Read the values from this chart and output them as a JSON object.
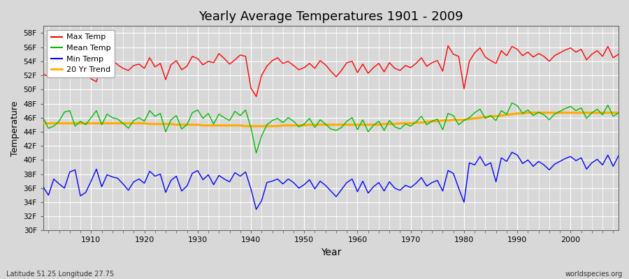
{
  "title": "Yearly Average Temperatures 1901 - 2009",
  "xlabel": "Year",
  "ylabel": "Temperature",
  "footnote_left": "Latitude 51.25 Longitude 27.75",
  "footnote_right": "worldspecies.org",
  "ylim": [
    30,
    59
  ],
  "yticks": [
    30,
    32,
    34,
    36,
    38,
    40,
    42,
    44,
    46,
    48,
    50,
    52,
    54,
    56,
    58
  ],
  "ytick_labels": [
    "30F",
    "32F",
    "34F",
    "36F",
    "38F",
    "40F",
    "42F",
    "44F",
    "46F",
    "48F",
    "50F",
    "52F",
    "54F",
    "56F",
    "58F"
  ],
  "xlim": [
    1901,
    2009
  ],
  "xticks": [
    1910,
    1920,
    1930,
    1940,
    1950,
    1960,
    1970,
    1980,
    1990,
    2000
  ],
  "bg_color": "#d8d8d8",
  "plot_bg_color": "#d8d8d8",
  "grid_color": "#ffffff",
  "max_color": "#ff0000",
  "mean_color": "#00bb00",
  "min_color": "#0000ff",
  "trend_color": "#ffaa00",
  "legend_labels": [
    "Max Temp",
    "Mean Temp",
    "Min Temp",
    "20 Yr Trend"
  ],
  "years": [
    1901,
    1902,
    1903,
    1904,
    1905,
    1906,
    1907,
    1908,
    1909,
    1910,
    1911,
    1912,
    1913,
    1914,
    1915,
    1916,
    1917,
    1918,
    1919,
    1920,
    1921,
    1922,
    1923,
    1924,
    1925,
    1926,
    1927,
    1928,
    1929,
    1930,
    1931,
    1932,
    1933,
    1934,
    1935,
    1936,
    1937,
    1938,
    1939,
    1940,
    1941,
    1942,
    1943,
    1944,
    1945,
    1946,
    1947,
    1948,
    1949,
    1950,
    1951,
    1952,
    1953,
    1954,
    1955,
    1956,
    1957,
    1958,
    1959,
    1960,
    1961,
    1962,
    1963,
    1964,
    1965,
    1966,
    1967,
    1968,
    1969,
    1970,
    1971,
    1972,
    1973,
    1974,
    1975,
    1976,
    1977,
    1978,
    1979,
    1980,
    1981,
    1982,
    1983,
    1984,
    1985,
    1986,
    1987,
    1988,
    1989,
    1990,
    1991,
    1992,
    1993,
    1994,
    1995,
    1996,
    1997,
    1998,
    1999,
    2000,
    2001,
    2002,
    2003,
    2004,
    2005,
    2006,
    2007,
    2008,
    2009
  ],
  "max_temps": [
    52.2,
    51.8,
    53.1,
    52.4,
    53.5,
    54.2,
    53.8,
    52.9,
    52.6,
    51.5,
    51.1,
    53.8,
    54.4,
    54.2,
    53.5,
    53.0,
    52.7,
    53.4,
    53.6,
    53.0,
    54.5,
    53.2,
    53.7,
    51.4,
    53.5,
    54.1,
    52.8,
    53.3,
    54.7,
    54.4,
    53.5,
    54.0,
    53.8,
    55.1,
    54.4,
    53.6,
    54.2,
    54.9,
    54.7,
    50.2,
    49.0,
    52.0,
    53.3,
    54.1,
    54.5,
    53.7,
    54.0,
    53.4,
    52.8,
    53.1,
    53.7,
    53.0,
    54.1,
    53.5,
    52.6,
    51.8,
    52.7,
    53.8,
    54.0,
    52.4,
    53.6,
    52.3,
    53.1,
    53.7,
    52.5,
    53.8,
    53.0,
    52.7,
    53.4,
    53.1,
    53.7,
    54.5,
    53.3,
    53.8,
    54.1,
    52.6,
    56.2,
    55.0,
    54.7,
    50.1,
    54.0,
    55.2,
    55.9,
    54.6,
    54.1,
    53.7,
    55.5,
    54.8,
    56.1,
    55.7,
    54.8,
    55.3,
    54.6,
    55.1,
    54.7,
    54.0,
    54.8,
    55.2,
    55.6,
    55.9,
    55.3,
    55.7,
    54.2,
    55.0,
    55.5,
    54.7,
    56.1,
    54.5,
    55.0
  ],
  "mean_temps": [
    46.0,
    44.5,
    44.8,
    45.5,
    46.8,
    47.0,
    44.8,
    45.5,
    45.0,
    46.0,
    47.0,
    45.0,
    46.5,
    46.0,
    45.8,
    45.2,
    44.5,
    45.6,
    46.0,
    45.5,
    47.0,
    46.2,
    46.6,
    44.0,
    45.7,
    46.3,
    44.4,
    45.0,
    46.7,
    47.1,
    45.9,
    46.6,
    45.1,
    46.5,
    46.0,
    45.6,
    46.9,
    46.3,
    47.1,
    44.6,
    41.0,
    43.4,
    45.0,
    45.6,
    45.9,
    45.3,
    46.0,
    45.5,
    44.7,
    45.1,
    45.9,
    44.6,
    45.7,
    45.1,
    44.4,
    44.2,
    44.6,
    45.5,
    46.0,
    44.3,
    45.7,
    44.0,
    44.9,
    45.5,
    44.2,
    45.6,
    44.7,
    44.4,
    45.1,
    44.8,
    45.4,
    46.2,
    45.0,
    45.5,
    45.8,
    44.3,
    46.6,
    46.3,
    45.0,
    45.6,
    46.0,
    46.7,
    47.2,
    45.9,
    46.3,
    45.6,
    47.0,
    46.5,
    48.1,
    47.7,
    46.6,
    47.1,
    46.3,
    46.8,
    46.4,
    45.7,
    46.5,
    46.9,
    47.3,
    47.6,
    47.0,
    47.4,
    45.9,
    46.7,
    47.2,
    46.4,
    47.8,
    46.2,
    46.7
  ],
  "min_temps": [
    36.2,
    35.0,
    37.3,
    36.6,
    36.0,
    38.3,
    38.6,
    34.9,
    35.4,
    37.0,
    38.7,
    36.2,
    37.9,
    37.6,
    37.4,
    36.6,
    35.7,
    36.9,
    37.3,
    36.7,
    38.4,
    37.7,
    38.0,
    35.4,
    37.1,
    37.7,
    35.6,
    36.3,
    38.1,
    38.5,
    37.2,
    37.9,
    36.5,
    37.8,
    37.3,
    36.9,
    38.2,
    37.7,
    38.3,
    35.9,
    33.0,
    34.2,
    36.8,
    37.0,
    37.3,
    36.6,
    37.3,
    36.8,
    36.0,
    36.5,
    37.2,
    35.9,
    37.0,
    36.4,
    35.6,
    34.8,
    35.8,
    36.8,
    37.3,
    35.5,
    37.0,
    35.3,
    36.2,
    36.8,
    35.6,
    36.9,
    36.0,
    35.7,
    36.4,
    36.1,
    36.7,
    37.5,
    36.3,
    36.8,
    37.1,
    35.6,
    38.5,
    38.1,
    36.0,
    34.0,
    39.6,
    39.3,
    40.5,
    39.2,
    39.6,
    36.9,
    40.3,
    39.8,
    41.1,
    40.7,
    39.5,
    40.0,
    39.1,
    39.8,
    39.3,
    38.6,
    39.4,
    39.8,
    40.2,
    40.5,
    39.9,
    40.3,
    38.7,
    39.6,
    40.1,
    39.3,
    40.7,
    39.1,
    40.6
  ],
  "trend_temps": [
    45.2,
    45.2,
    45.2,
    45.2,
    45.2,
    45.2,
    45.2,
    45.2,
    45.2,
    45.2,
    45.2,
    45.2,
    45.2,
    45.2,
    45.2,
    45.2,
    45.2,
    45.2,
    45.2,
    45.2,
    45.1,
    45.1,
    45.1,
    45.1,
    45.1,
    45.0,
    45.0,
    45.0,
    45.0,
    45.0,
    44.9,
    44.9,
    44.9,
    44.9,
    44.9,
    44.9,
    44.9,
    44.9,
    44.8,
    44.8,
    44.8,
    44.8,
    44.8,
    44.8,
    44.8,
    44.9,
    44.9,
    44.9,
    44.9,
    44.9,
    45.0,
    45.0,
    45.0,
    45.0,
    45.0,
    45.0,
    45.0,
    45.0,
    45.0,
    45.0,
    45.0,
    45.0,
    45.0,
    45.0,
    45.1,
    45.1,
    45.1,
    45.2,
    45.2,
    45.2,
    45.3,
    45.3,
    45.4,
    45.5,
    45.5,
    45.6,
    45.6,
    45.7,
    45.7,
    45.7,
    45.8,
    45.9,
    46.0,
    46.1,
    46.2,
    46.2,
    46.3,
    46.4,
    46.5,
    46.6,
    46.6,
    46.7,
    46.7,
    46.7,
    46.7,
    46.7,
    46.7,
    46.7,
    46.7,
    46.7,
    46.7,
    46.7,
    46.7,
    46.7,
    46.7,
    46.7,
    46.7,
    46.7,
    46.7
  ]
}
